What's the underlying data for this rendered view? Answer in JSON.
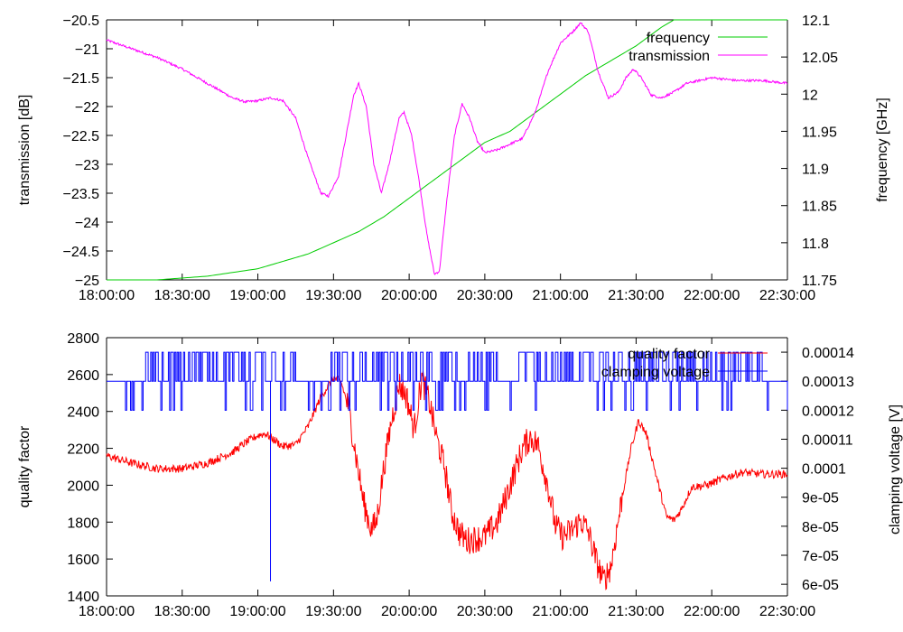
{
  "chart_data": [
    {
      "type": "line",
      "x_tick_labels": [
        "18:00:00",
        "18:30:00",
        "19:00:00",
        "19:30:00",
        "20:00:00",
        "20:30:00",
        "21:00:00",
        "21:30:00",
        "22:00:00",
        "22:30:00"
      ],
      "xlim": [
        0,
        270
      ],
      "ylabel": "transmission [dB]",
      "ylim": [
        -25,
        -20.5
      ],
      "y_tick_labels": [
        "-25",
        "-24.5",
        "-24",
        "-23.5",
        "-23",
        "-22.5",
        "-22",
        "-21.5",
        "-21",
        "-20.5"
      ],
      "y2label": "frequency [GHz]",
      "y2lim": [
        11.75,
        12.1
      ],
      "y2_tick_labels": [
        "11.75",
        "11.8",
        "11.85",
        "11.9",
        "11.95",
        "12",
        "12.05",
        "12.1"
      ],
      "legend_position": "top-right",
      "series": [
        {
          "name": "frequency",
          "axis": "y2",
          "color": "#00cc00",
          "points": [
            [
              0,
              11.75
            ],
            [
              20,
              11.75
            ],
            [
              40,
              11.755
            ],
            [
              60,
              11.765
            ],
            [
              80,
              11.785
            ],
            [
              100,
              11.815
            ],
            [
              110,
              11.835
            ],
            [
              120,
              11.86
            ],
            [
              130,
              11.885
            ],
            [
              140,
              11.91
            ],
            [
              150,
              11.935
            ],
            [
              160,
              11.95
            ],
            [
              170,
              11.975
            ],
            [
              180,
              12.0
            ],
            [
              190,
              12.025
            ],
            [
              200,
              12.045
            ],
            [
              210,
              12.065
            ],
            [
              220,
              12.09
            ],
            [
              225,
              12.1
            ],
            [
              230,
              12.1
            ],
            [
              270,
              12.1
            ]
          ]
        },
        {
          "name": "transmission",
          "axis": "y",
          "color": "#ff00ff",
          "points": [
            [
              0,
              -20.85
            ],
            [
              10,
              -21.0
            ],
            [
              20,
              -21.15
            ],
            [
              30,
              -21.35
            ],
            [
              40,
              -21.6
            ],
            [
              50,
              -21.85
            ],
            [
              55,
              -21.92
            ],
            [
              60,
              -21.9
            ],
            [
              65,
              -21.85
            ],
            [
              70,
              -21.9
            ],
            [
              75,
              -22.2
            ],
            [
              80,
              -22.9
            ],
            [
              85,
              -23.5
            ],
            [
              88,
              -23.55
            ],
            [
              92,
              -23.2
            ],
            [
              95,
              -22.5
            ],
            [
              98,
              -21.8
            ],
            [
              100,
              -21.6
            ],
            [
              103,
              -22.0
            ],
            [
              106,
              -23.0
            ],
            [
              109,
              -23.5
            ],
            [
              112,
              -23.0
            ],
            [
              116,
              -22.2
            ],
            [
              118,
              -22.1
            ],
            [
              121,
              -22.5
            ],
            [
              124,
              -23.3
            ],
            [
              127,
              -24.2
            ],
            [
              130,
              -24.9
            ],
            [
              132,
              -24.85
            ],
            [
              135,
              -23.6
            ],
            [
              138,
              -22.5
            ],
            [
              141,
              -21.95
            ],
            [
              144,
              -22.2
            ],
            [
              147,
              -22.6
            ],
            [
              150,
              -22.8
            ],
            [
              155,
              -22.75
            ],
            [
              160,
              -22.65
            ],
            [
              165,
              -22.55
            ],
            [
              170,
              -22.1
            ],
            [
              175,
              -21.4
            ],
            [
              180,
              -20.9
            ],
            [
              185,
              -20.7
            ],
            [
              188,
              -20.55
            ],
            [
              191,
              -20.7
            ],
            [
              195,
              -21.4
            ],
            [
              199,
              -21.85
            ],
            [
              203,
              -21.75
            ],
            [
              206,
              -21.5
            ],
            [
              209,
              -21.35
            ],
            [
              212,
              -21.5
            ],
            [
              216,
              -21.8
            ],
            [
              220,
              -21.85
            ],
            [
              225,
              -21.75
            ],
            [
              230,
              -21.6
            ],
            [
              240,
              -21.5
            ],
            [
              250,
              -21.55
            ],
            [
              260,
              -21.55
            ],
            [
              270,
              -21.6
            ]
          ]
        }
      ]
    },
    {
      "type": "line",
      "x_tick_labels": [
        "18:00:00",
        "18:30:00",
        "19:00:00",
        "19:30:00",
        "20:00:00",
        "20:30:00",
        "21:00:00",
        "21:30:00",
        "22:00:00",
        "22:30:00"
      ],
      "xlim": [
        0,
        270
      ],
      "ylabel": "quality factor",
      "ylim": [
        1400,
        2800
      ],
      "y_tick_labels": [
        "1400",
        "1600",
        "1800",
        "2000",
        "2200",
        "2400",
        "2600",
        "2800"
      ],
      "y2label": "clamping voltage [V]",
      "y2lim": [
        5.6e-05,
        0.000145
      ],
      "y2_tick_labels": [
        "6e-05",
        "7e-05",
        "8e-05",
        "9e-05",
        "0.0001",
        "0.00011",
        "0.00012",
        "0.00013",
        "0.00014"
      ],
      "legend_position": "top-right",
      "series": [
        {
          "name": "quality factor",
          "axis": "y",
          "color": "#ff0000",
          "points": [
            [
              0,
              2160
            ],
            [
              10,
              2120
            ],
            [
              20,
              2090
            ],
            [
              30,
              2090
            ],
            [
              40,
              2120
            ],
            [
              50,
              2180
            ],
            [
              55,
              2230
            ],
            [
              60,
              2270
            ],
            [
              63,
              2280
            ],
            [
              66,
              2250
            ],
            [
              70,
              2210
            ],
            [
              75,
              2220
            ],
            [
              80,
              2320
            ],
            [
              85,
              2480
            ],
            [
              90,
              2580
            ],
            [
              93,
              2560
            ],
            [
              96,
              2420
            ],
            [
              99,
              2150
            ],
            [
              102,
              1900
            ],
            [
              105,
              1760
            ],
            [
              107,
              1800
            ],
            [
              110,
              2100
            ],
            [
              113,
              2350
            ],
            [
              116,
              2550
            ],
            [
              119,
              2480
            ],
            [
              122,
              2300
            ],
            [
              125,
              2580
            ],
            [
              128,
              2450
            ],
            [
              131,
              2250
            ],
            [
              134,
              2100
            ],
            [
              137,
              1850
            ],
            [
              140,
              1740
            ],
            [
              143,
              1700
            ],
            [
              146,
              1710
            ],
            [
              150,
              1720
            ],
            [
              155,
              1800
            ],
            [
              160,
              2000
            ],
            [
              165,
              2200
            ],
            [
              168,
              2260
            ],
            [
              171,
              2220
            ],
            [
              175,
              2000
            ],
            [
              178,
              1780
            ],
            [
              181,
              1720
            ],
            [
              185,
              1760
            ],
            [
              188,
              1810
            ],
            [
              191,
              1750
            ],
            [
              194,
              1600
            ],
            [
              197,
              1480
            ],
            [
              200,
              1560
            ],
            [
              204,
              1900
            ],
            [
              208,
              2200
            ],
            [
              211,
              2350
            ],
            [
              214,
              2280
            ],
            [
              218,
              2050
            ],
            [
              222,
              1830
            ],
            [
              225,
              1810
            ],
            [
              228,
              1870
            ],
            [
              232,
              1990
            ],
            [
              238,
              2000
            ],
            [
              245,
              2040
            ],
            [
              252,
              2070
            ],
            [
              260,
              2060
            ],
            [
              270,
              2060
            ]
          ]
        },
        {
          "name": "clamping voltage",
          "axis": "y2",
          "color": "#0000ff",
          "levels": [
            0.00012,
            0.00013,
            0.00014
          ],
          "dip_x": 65,
          "dip_value": 6.1e-05
        }
      ]
    }
  ]
}
